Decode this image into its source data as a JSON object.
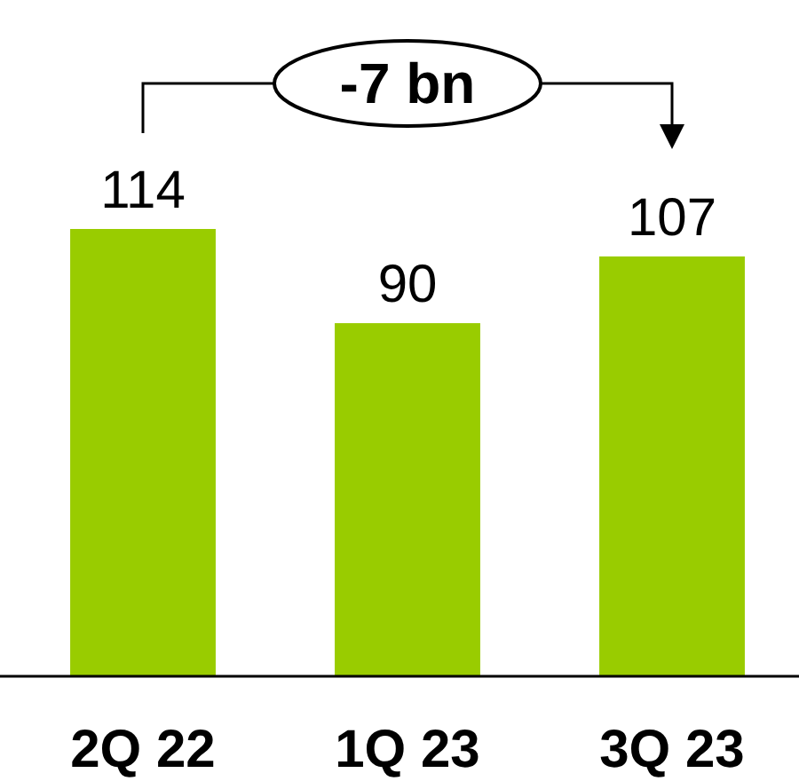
{
  "chart_data": {
    "type": "bar",
    "categories": [
      "2Q 22",
      "1Q 23",
      "3Q 23"
    ],
    "values": [
      114,
      90,
      107
    ],
    "color": "#99cc00",
    "data_labels": true,
    "annotations": [
      "-7 bn"
    ]
  }
}
